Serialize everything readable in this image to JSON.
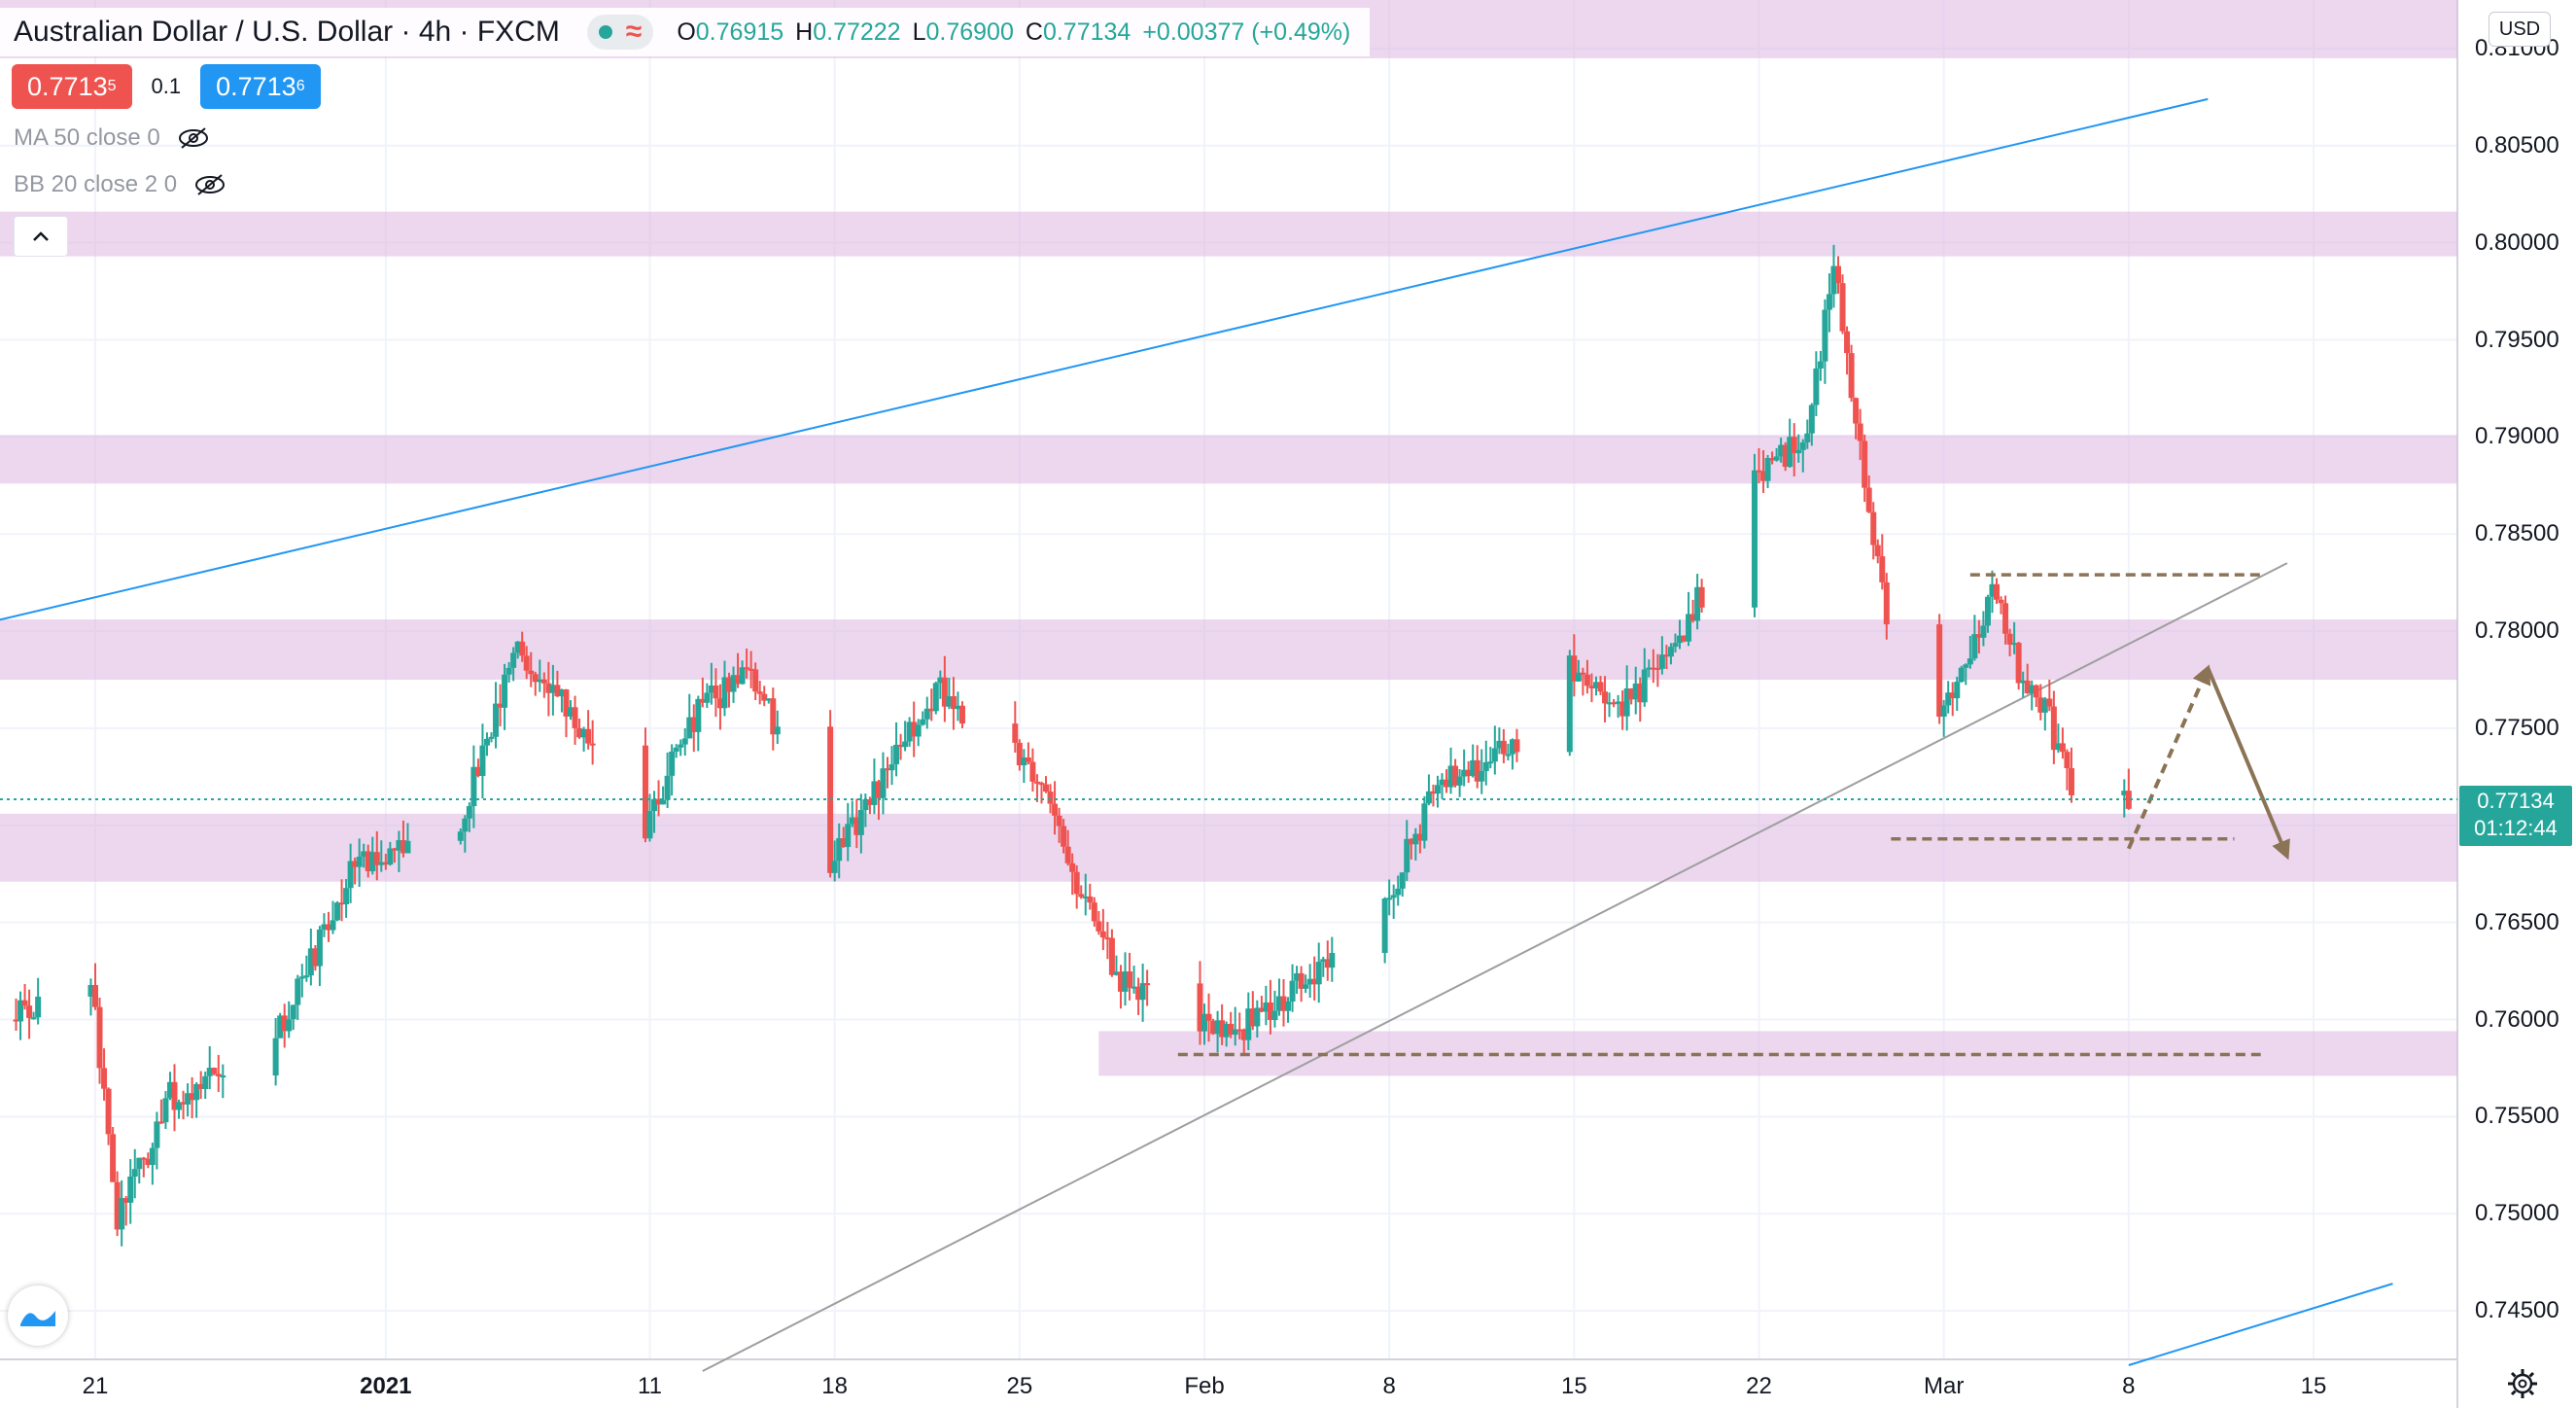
{
  "header": {
    "symbol": "Australian Dollar / U.S. Dollar",
    "interval": "4h",
    "exchange": "FXCM",
    "status_icon": "market-open-dot-icon",
    "wave_icon": "wave-icon",
    "ohlc": {
      "o_label": "O",
      "o": "0.76915",
      "h_label": "H",
      "h": "0.77222",
      "l_label": "L",
      "l": "0.76900",
      "c_label": "C",
      "c": "0.77134",
      "change": "+0.00377 (+0.49%)"
    }
  },
  "quote": {
    "bid": "0.7713",
    "bid_sup": "5",
    "spread": "0.1",
    "ask": "0.7713",
    "ask_sup": "6"
  },
  "indicators": [
    {
      "label": "MA 50 close 0",
      "icon": "eye-off-icon"
    },
    {
      "label": "BB 20 close 2 0",
      "icon": "eye-off-icon"
    }
  ],
  "axis": {
    "currency": "USD",
    "y_ticks": [
      "0.81000",
      "0.80500",
      "0.80000",
      "0.79500",
      "0.79000",
      "0.78500",
      "0.78000",
      "0.77500",
      "0.77000",
      "0.76500",
      "0.76000",
      "0.75500",
      "0.75000",
      "0.74500"
    ],
    "x_ticks": [
      "21",
      "2021",
      "11",
      "18",
      "25",
      "Feb",
      "8",
      "15",
      "22",
      "Mar",
      "8",
      "15"
    ]
  },
  "current": {
    "price": "0.77134",
    "countdown": "01:12:44"
  },
  "colors": {
    "up": "#26a69a",
    "down": "#ef5350",
    "zone": "#dcb6e2",
    "channel": "#2196f3",
    "trendline": "#9e9e9e",
    "annotation": "#8b7355"
  },
  "chart_data": {
    "type": "candlestick",
    "title": "Australian Dollar / U.S. Dollar",
    "interval": "4h",
    "ylim": [
      0.7425,
      0.8125
    ],
    "x_range": [
      "2020-12-21",
      "2021-03-15"
    ],
    "zones": [
      {
        "from": 0.8095,
        "to": 0.8125
      },
      {
        "from": 0.7993,
        "to": 0.8016
      },
      {
        "from": 0.7876,
        "to": 0.7901
      },
      {
        "from": 0.7775,
        "to": 0.7806
      },
      {
        "from": 0.7671,
        "to": 0.7706
      },
      {
        "from_date": "2021-01-28",
        "from": 0.7571,
        "to": 0.7594
      }
    ],
    "levels": [
      {
        "price": 0.7829,
        "from_date": "2021-03-02",
        "to_date": "2021-03-13",
        "style": "dashed"
      },
      {
        "price": 0.7693,
        "from_date": "2021-02-27",
        "to_date": "2021-03-12",
        "style": "dashed"
      },
      {
        "price": 0.7582,
        "from_date": "2021-01-31",
        "to_date": "2021-03-13",
        "style": "dashed"
      }
    ],
    "trendlines": [
      {
        "from": [
          "2020-12-14",
          0.7795
        ],
        "to": [
          "2021-03-11",
          0.8074
        ],
        "color": "channel"
      },
      {
        "from": [
          "2021-03-08",
          0.7422
        ],
        "to": [
          "2021-03-18",
          0.7464
        ],
        "color": "channel"
      },
      {
        "from": [
          "2021-01-13",
          0.7419
        ],
        "to": [
          "2021-03-14",
          0.7835
        ],
        "color": "trendline"
      }
    ],
    "arrows": [
      {
        "from": [
          "2021-03-08",
          0.7688
        ],
        "to": [
          "2021-03-11",
          0.7781
        ],
        "style": "dashed"
      },
      {
        "from": [
          "2021-03-11",
          0.7781
        ],
        "to": [
          "2021-03-14",
          0.7684
        ],
        "style": "solid"
      }
    ],
    "anchors": [
      [
        "2020-12-18",
        0.76
      ],
      [
        "2020-12-21",
        0.762
      ],
      [
        "2020-12-22",
        0.7495
      ],
      [
        "2020-12-24",
        0.756
      ],
      [
        "2020-12-28",
        0.759
      ],
      [
        "2020-12-31",
        0.768
      ],
      [
        "2021-01-04",
        0.77
      ],
      [
        "2021-01-06",
        0.779
      ],
      [
        "2021-01-08",
        0.776
      ],
      [
        "2021-01-11",
        0.77
      ],
      [
        "2021-01-13",
        0.776
      ],
      [
        "2021-01-15",
        0.778
      ],
      [
        "2021-01-18",
        0.768
      ],
      [
        "2021-01-22",
        0.777
      ],
      [
        "2021-01-25",
        0.774
      ],
      [
        "2021-01-26",
        0.772
      ],
      [
        "2021-01-27",
        0.768
      ],
      [
        "2021-01-29",
        0.762
      ],
      [
        "2021-02-02",
        0.759
      ],
      [
        "2021-02-05",
        0.762
      ],
      [
        "2021-02-08",
        0.766
      ],
      [
        "2021-02-10",
        0.772
      ],
      [
        "2021-02-13",
        0.774
      ],
      [
        "2021-02-15",
        0.778
      ],
      [
        "2021-02-17",
        0.776
      ],
      [
        "2021-02-19",
        0.779
      ],
      [
        "2021-02-22",
        0.788
      ],
      [
        "2021-02-24",
        0.79
      ],
      [
        "2021-02-25",
        0.799
      ],
      [
        "2021-02-26",
        0.789
      ],
      [
        "2021-02-28",
        0.772
      ],
      [
        "2021-03-03",
        0.782
      ],
      [
        "2021-03-04",
        0.778
      ],
      [
        "2021-03-05",
        0.776
      ],
      [
        "2021-03-07",
        0.768
      ],
      [
        "2021-03-08",
        0.7713
      ]
    ]
  }
}
